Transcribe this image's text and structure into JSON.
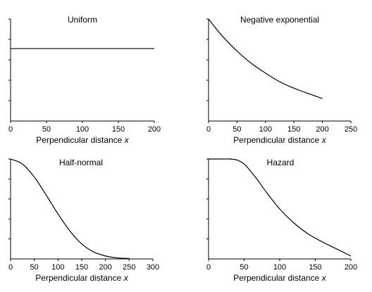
{
  "chart_data": [
    {
      "type": "line",
      "title": "Uniform",
      "xlabel": "Perpendicular distance",
      "xlabel_var": "x",
      "xlim": [
        0,
        200
      ],
      "xticks": [
        0,
        50,
        100,
        150,
        200
      ],
      "ylim": [
        0,
        1
      ],
      "yticks": [
        0.2,
        0.4,
        0.6,
        0.8,
        1.0
      ],
      "series": [
        {
          "x": [
            0,
            200
          ],
          "y": [
            0.71,
            0.71
          ]
        }
      ]
    },
    {
      "type": "line",
      "title": "Negative exponential",
      "xlabel": "Perpendicular distance",
      "xlabel_var": "x",
      "xlim": [
        0,
        250
      ],
      "xticks": [
        0,
        50,
        100,
        150,
        200,
        250
      ],
      "ylim": [
        0,
        1
      ],
      "yticks": [
        0.2,
        0.4,
        0.6,
        0.8,
        1.0
      ],
      "series": [
        {
          "x": [
            0,
            20,
            40,
            60,
            80,
            100,
            120,
            140,
            160,
            180,
            200
          ],
          "y": [
            1.0,
            0.86,
            0.74,
            0.635,
            0.545,
            0.47,
            0.4,
            0.345,
            0.3,
            0.26,
            0.22
          ]
        }
      ]
    },
    {
      "type": "line",
      "title": "Half-normal",
      "xlabel": "Perpendicular distance",
      "xlabel_var": "x",
      "xlim": [
        0,
        300
      ],
      "xticks": [
        0,
        50,
        100,
        150,
        200,
        250,
        300
      ],
      "ylim": [
        0,
        1
      ],
      "yticks": [
        0.2,
        0.4,
        0.6,
        0.8,
        1.0
      ],
      "series": [
        {
          "x": [
            0,
            25,
            50,
            75,
            100,
            125,
            150,
            175,
            200,
            225,
            250
          ],
          "y": [
            1.0,
            0.95,
            0.82,
            0.64,
            0.45,
            0.28,
            0.15,
            0.07,
            0.03,
            0.01,
            0.005
          ]
        }
      ]
    },
    {
      "type": "line",
      "title": "Hazard",
      "xlabel": "Perpendicular distance",
      "xlabel_var": "x",
      "xlim": [
        0,
        200
      ],
      "xticks": [
        0,
        50,
        100,
        150,
        200
      ],
      "ylim": [
        0,
        1
      ],
      "yticks": [
        0.2,
        0.4,
        0.6,
        0.8,
        1.0
      ],
      "series": [
        {
          "x": [
            0,
            20,
            30,
            40,
            50,
            60,
            70,
            80,
            100,
            120,
            140,
            160,
            180,
            200
          ],
          "y": [
            1.0,
            1.0,
            1.0,
            0.99,
            0.95,
            0.87,
            0.78,
            0.68,
            0.5,
            0.36,
            0.25,
            0.17,
            0.1,
            0.03
          ]
        }
      ]
    }
  ]
}
